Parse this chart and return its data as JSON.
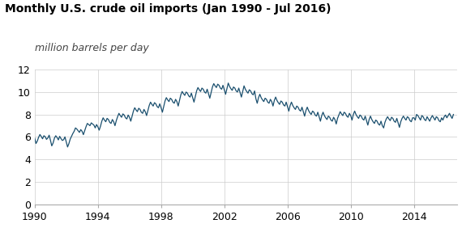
{
  "title": "Monthly U.S. crude oil imports (Jan 1990 - Jul 2016)",
  "ylabel": "million barrels per day",
  "xlim": [
    1990.0,
    2016.75
  ],
  "ylim": [
    0,
    12
  ],
  "yticks": [
    0,
    2,
    4,
    6,
    8,
    10,
    12
  ],
  "xticks": [
    1990,
    1994,
    1998,
    2002,
    2006,
    2010,
    2014
  ],
  "line_color": "#1a4f6e",
  "bg_color": "#ffffff",
  "grid_color": "#cccccc",
  "title_fontsize": 10,
  "ylabel_fontsize": 9,
  "tick_fontsize": 9,
  "values": [
    5.89,
    5.41,
    5.62,
    5.96,
    6.21,
    6.04,
    5.83,
    6.1,
    6.02,
    5.78,
    5.9,
    6.15,
    5.7,
    5.2,
    5.45,
    5.88,
    6.1,
    5.95,
    5.73,
    6.05,
    5.85,
    5.68,
    5.75,
    6.0,
    5.55,
    5.1,
    5.4,
    5.8,
    6.05,
    6.3,
    6.5,
    6.8,
    6.7,
    6.55,
    6.4,
    6.65,
    6.5,
    6.2,
    6.55,
    6.9,
    7.2,
    7.1,
    7.0,
    7.25,
    7.15,
    7.05,
    6.8,
    7.1,
    6.9,
    6.6,
    6.95,
    7.4,
    7.7,
    7.5,
    7.35,
    7.65,
    7.55,
    7.3,
    7.2,
    7.55,
    7.35,
    7.0,
    7.45,
    7.8,
    8.1,
    7.9,
    7.75,
    8.05,
    7.95,
    7.7,
    7.6,
    7.95,
    7.75,
    7.4,
    7.85,
    8.3,
    8.6,
    8.4,
    8.25,
    8.55,
    8.45,
    8.2,
    8.1,
    8.45,
    8.25,
    7.9,
    8.35,
    8.8,
    9.1,
    8.9,
    8.75,
    9.05,
    8.95,
    8.7,
    8.6,
    8.95,
    8.6,
    8.2,
    8.7,
    9.2,
    9.5,
    9.3,
    9.15,
    9.45,
    9.35,
    9.1,
    9.0,
    9.35,
    9.15,
    8.75,
    9.25,
    9.75,
    10.05,
    9.85,
    9.7,
    10.0,
    9.9,
    9.65,
    9.55,
    9.9,
    9.5,
    9.1,
    9.6,
    10.1,
    10.4,
    10.2,
    10.05,
    10.35,
    10.25,
    10.0,
    9.9,
    10.25,
    9.85,
    9.45,
    9.95,
    10.45,
    10.75,
    10.55,
    10.4,
    10.7,
    10.6,
    10.35,
    10.25,
    10.6,
    10.2,
    9.8,
    10.3,
    10.8,
    10.5,
    10.3,
    10.15,
    10.45,
    10.35,
    10.1,
    10.0,
    10.35,
    9.95,
    9.55,
    10.05,
    10.55,
    10.25,
    10.05,
    9.9,
    10.2,
    10.1,
    9.85,
    9.75,
    10.1,
    9.4,
    9.0,
    9.5,
    9.8,
    9.5,
    9.3,
    9.15,
    9.45,
    9.35,
    9.1,
    9.0,
    9.35,
    9.15,
    8.75,
    9.25,
    9.55,
    9.25,
    9.05,
    8.9,
    9.2,
    9.1,
    8.85,
    8.75,
    9.1,
    8.7,
    8.3,
    8.8,
    9.1,
    8.8,
    8.6,
    8.45,
    8.75,
    8.65,
    8.4,
    8.3,
    8.65,
    8.25,
    7.85,
    8.35,
    8.65,
    8.35,
    8.15,
    8.0,
    8.3,
    8.2,
    7.95,
    7.85,
    8.2,
    7.8,
    7.4,
    7.9,
    8.2,
    7.9,
    7.7,
    7.55,
    7.85,
    7.75,
    7.5,
    7.4,
    7.75,
    7.55,
    7.15,
    7.65,
    7.95,
    8.25,
    8.05,
    7.9,
    8.2,
    8.1,
    7.85,
    7.75,
    8.1,
    7.9,
    7.5,
    8.0,
    8.3,
    8.0,
    7.8,
    7.65,
    7.95,
    7.85,
    7.6,
    7.5,
    7.85,
    7.45,
    7.05,
    7.55,
    7.85,
    7.55,
    7.35,
    7.2,
    7.5,
    7.4,
    7.15,
    7.05,
    7.4,
    7.0,
    6.8,
    7.3,
    7.6,
    7.8,
    7.6,
    7.45,
    7.75,
    7.65,
    7.4,
    7.3,
    7.65,
    7.25,
    6.85,
    7.35,
    7.65,
    7.85,
    7.65,
    7.5,
    7.8,
    7.7,
    7.45,
    7.35,
    7.7,
    7.7,
    7.5,
    8.0,
    7.9,
    7.7,
    7.5,
    7.9,
    7.8,
    7.55,
    7.45,
    7.8,
    7.6,
    7.4,
    7.7,
    7.9,
    7.7,
    7.5,
    7.8,
    7.7,
    7.45,
    7.35,
    7.7,
    7.5,
    7.8,
    7.95,
    7.7,
    7.9,
    8.1,
    7.85,
    7.65,
    8.0
  ]
}
